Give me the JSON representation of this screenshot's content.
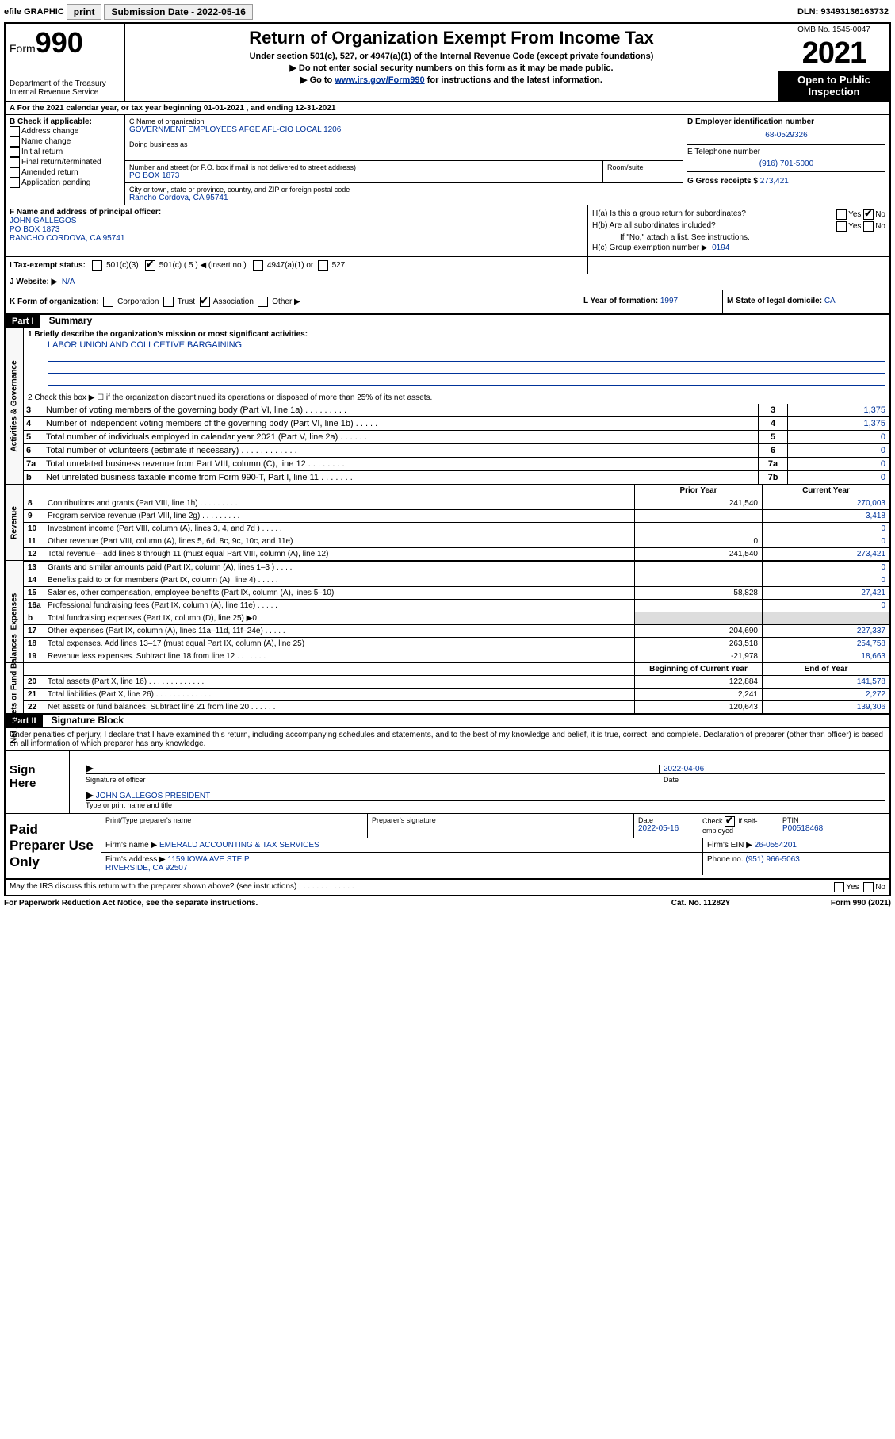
{
  "topbar": {
    "efile": "efile GRAPHIC",
    "print": "print",
    "sub_label": "Submission Date - 2022-05-16",
    "dln": "DLN: 93493136163732"
  },
  "header": {
    "form_prefix": "Form",
    "form_num": "990",
    "dept": "Department of the Treasury\nInternal Revenue Service",
    "title": "Return of Organization Exempt From Income Tax",
    "sub1": "Under section 501(c), 527, or 4947(a)(1) of the Internal Revenue Code (except private foundations)",
    "sub2": "▶ Do not enter social security numbers on this form as it may be made public.",
    "sub3_pre": "▶ Go to ",
    "sub3_link": "www.irs.gov/Form990",
    "sub3_post": " for instructions and the latest information.",
    "omb": "OMB No. 1545-0047",
    "year": "2021",
    "open": "Open to Public Inspection"
  },
  "rowA": "A For the 2021 calendar year, or tax year beginning 01-01-2021   , and ending 12-31-2021",
  "colB": {
    "title": "B Check if applicable:",
    "items": [
      "Address change",
      "Name change",
      "Initial return",
      "Final return/terminated",
      "Amended return",
      "Application pending"
    ]
  },
  "colC": {
    "name_label": "C Name of organization",
    "name": "GOVERNMENT EMPLOYEES AFGE AFL-CIO LOCAL 1206",
    "dba_label": "Doing business as",
    "addr_label": "Number and street (or P.O. box if mail is not delivered to street address)",
    "room_label": "Room/suite",
    "addr": "PO BOX 1873",
    "city_label": "City or town, state or province, country, and ZIP or foreign postal code",
    "city": "Rancho Cordova, CA  95741"
  },
  "colD": {
    "ein_label": "D Employer identification number",
    "ein": "68-0529326",
    "phone_label": "E Telephone number",
    "phone": "(916) 701-5000",
    "gross_label": "G Gross receipts $",
    "gross": "273,421"
  },
  "sectionF": {
    "label": "F Name and address of principal officer:",
    "name": "JOHN GALLEGOS",
    "addr1": "PO BOX 1873",
    "addr2": "RANCHO CORDOVA, CA  95741"
  },
  "sectionH": {
    "ha": "H(a)  Is this a group return for subordinates?",
    "hb": "H(b)  Are all subordinates included?",
    "hb_note": "If \"No,\" attach a list. See instructions.",
    "hc": "H(c)  Group exemption number ▶",
    "hc_val": "0194",
    "yes": "Yes",
    "no": "No"
  },
  "rowI": {
    "label": "I  Tax-exempt status:",
    "opt1": "501(c)(3)",
    "opt2": "501(c) ( 5 ) ◀ (insert no.)",
    "opt3": "4947(a)(1) or",
    "opt4": "527"
  },
  "rowJ": {
    "label": "J  Website: ▶",
    "val": "N/A"
  },
  "rowK": {
    "label": "K Form of organization:",
    "opts": [
      "Corporation",
      "Trust",
      "Association",
      "Other ▶"
    ],
    "l_label": "L Year of formation:",
    "l_val": "1997",
    "m_label": "M State of legal domicile:",
    "m_val": "CA"
  },
  "part1": {
    "header": "Part I",
    "title": "Summary",
    "side_gov": "Activities & Governance",
    "side_rev": "Revenue",
    "side_exp": "Expenses",
    "side_net": "Net Assets or Fund Balances",
    "line1": "1  Briefly describe the organization's mission or most significant activities:",
    "mission": "LABOR UNION AND COLLCETIVE BARGAINING",
    "line2": "2  Check this box ▶ ☐  if the organization discontinued its operations or disposed of more than 25% of its net assets.",
    "gov_lines": [
      {
        "n": "3",
        "d": "Number of voting members of the governing body (Part VI, line 1a)   .    .    .    .    .    .    .    .    .",
        "b": "3",
        "v": "1,375"
      },
      {
        "n": "4",
        "d": "Number of independent voting members of the governing body (Part VI, line 1b)   .    .    .    .    .",
        "b": "4",
        "v": "1,375"
      },
      {
        "n": "5",
        "d": "Total number of individuals employed in calendar year 2021 (Part V, line 2a)   .    .    .    .    .    .",
        "b": "5",
        "v": "0"
      },
      {
        "n": "6",
        "d": "Total number of volunteers (estimate if necessary)   .    .    .    .    .    .    .    .    .    .    .    .",
        "b": "6",
        "v": "0"
      },
      {
        "n": "7a",
        "d": "Total unrelated business revenue from Part VIII, column (C), line 12   .    .    .    .    .    .    .    .",
        "b": "7a",
        "v": "0"
      },
      {
        "n": "b",
        "d": "Net unrelated business taxable income from Form 990-T, Part I, line 11   .    .    .    .    .    .    .",
        "b": "7b",
        "v": "0"
      }
    ],
    "col_prior": "Prior Year",
    "col_current": "Current Year",
    "col_begin": "Beginning of Current Year",
    "col_end": "End of Year",
    "rev_lines": [
      {
        "n": "8",
        "d": "Contributions and grants (Part VIII, line 1h)   .    .    .    .    .    .    .    .    .",
        "p": "241,540",
        "c": "270,003"
      },
      {
        "n": "9",
        "d": "Program service revenue (Part VIII, line 2g)   .    .    .    .    .    .    .    .    .",
        "p": "",
        "c": "3,418"
      },
      {
        "n": "10",
        "d": "Investment income (Part VIII, column (A), lines 3, 4, and 7d )   .    .    .    .    .",
        "p": "",
        "c": "0"
      },
      {
        "n": "11",
        "d": "Other revenue (Part VIII, column (A), lines 5, 6d, 8c, 9c, 10c, and 11e)",
        "p": "0",
        "c": "0"
      },
      {
        "n": "12",
        "d": "Total revenue—add lines 8 through 11 (must equal Part VIII, column (A), line 12)",
        "p": "241,540",
        "c": "273,421"
      }
    ],
    "exp_lines": [
      {
        "n": "13",
        "d": "Grants and similar amounts paid (Part IX, column (A), lines 1–3 )   .    .    .    .",
        "p": "",
        "c": "0"
      },
      {
        "n": "14",
        "d": "Benefits paid to or for members (Part IX, column (A), line 4)   .    .    .    .    .",
        "p": "",
        "c": "0"
      },
      {
        "n": "15",
        "d": "Salaries, other compensation, employee benefits (Part IX, column (A), lines 5–10)",
        "p": "58,828",
        "c": "27,421"
      },
      {
        "n": "16a",
        "d": "Professional fundraising fees (Part IX, column (A), line 11e)   .    .    .    .    .",
        "p": "",
        "c": "0"
      },
      {
        "n": "b",
        "d": "Total fundraising expenses (Part IX, column (D), line 25) ▶0",
        "p": "shaded",
        "c": "shaded"
      },
      {
        "n": "17",
        "d": "Other expenses (Part IX, column (A), lines 11a–11d, 11f–24e)   .    .    .    .    .",
        "p": "204,690",
        "c": "227,337"
      },
      {
        "n": "18",
        "d": "Total expenses. Add lines 13–17 (must equal Part IX, column (A), line 25)",
        "p": "263,518",
        "c": "254,758"
      },
      {
        "n": "19",
        "d": "Revenue less expenses. Subtract line 18 from line 12   .    .    .    .    .    .    .",
        "p": "-21,978",
        "c": "18,663"
      }
    ],
    "net_lines": [
      {
        "n": "20",
        "d": "Total assets (Part X, line 16)   .    .    .    .    .    .    .    .    .    .    .    .    .",
        "p": "122,884",
        "c": "141,578"
      },
      {
        "n": "21",
        "d": "Total liabilities (Part X, line 26)   .    .    .    .    .    .    .    .    .    .    .    .    .",
        "p": "2,241",
        "c": "2,272"
      },
      {
        "n": "22",
        "d": "Net assets or fund balances. Subtract line 21 from line 20   .    .    .    .    .    .",
        "p": "120,643",
        "c": "139,306"
      }
    ]
  },
  "part2": {
    "header": "Part II",
    "title": "Signature Block",
    "penalty": "Under penalties of perjury, I declare that I have examined this return, including accompanying schedules and statements, and to the best of my knowledge and belief, it is true, correct, and complete. Declaration of preparer (other than officer) is based on all information of which preparer has any knowledge.",
    "sign_here": "Sign Here",
    "sig_officer": "Signature of officer",
    "sig_date": "2022-04-06",
    "date_label": "Date",
    "officer_name": "JOHN GALLEGOS PRESIDENT",
    "type_name": "Type or print name and title",
    "paid": "Paid Preparer Use Only",
    "prep_name_label": "Print/Type preparer's name",
    "prep_sig_label": "Preparer's signature",
    "prep_date_label": "Date",
    "prep_date": "2022-05-16",
    "self_emp": "Check ☑ if self-employed",
    "ptin_label": "PTIN",
    "ptin": "P00518468",
    "firm_name_label": "Firm's name    ▶",
    "firm_name": "EMERALD ACCOUNTING & TAX SERVICES",
    "firm_ein_label": "Firm's EIN ▶",
    "firm_ein": "26-0554201",
    "firm_addr_label": "Firm's address ▶",
    "firm_addr": "1159 IOWA AVE STE P\nRIVERSIDE, CA  92507",
    "firm_phone_label": "Phone no.",
    "firm_phone": "(951) 966-5063",
    "may_irs": "May the IRS discuss this return with the preparer shown above? (see instructions)   .    .    .    .    .    .    .    .    .    .    .    .    ."
  },
  "footer": {
    "paperwork": "For Paperwork Reduction Act Notice, see the separate instructions.",
    "cat": "Cat. No. 11282Y",
    "form": "Form 990 (2021)"
  }
}
